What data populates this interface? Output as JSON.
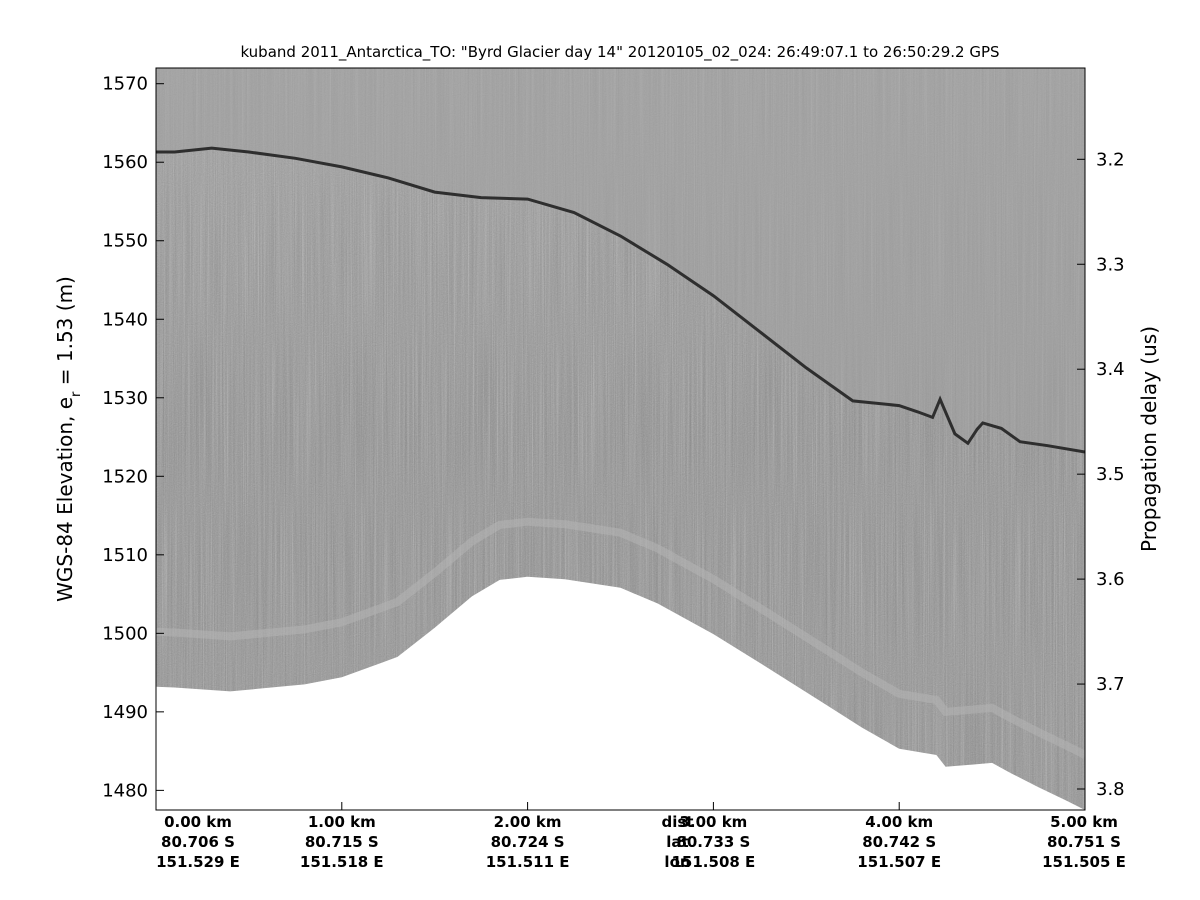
{
  "chart_data": {
    "type": "heatmap",
    "title": "kuband 2011_Antarctica_TO: \"Byrd Glacier day 14\"  20120105_02_024: 26:49:07.1 to 26:50:29.2 GPS",
    "ylabel_left_main": "WGS-84 Elevation, e",
    "ylabel_left_sub": "r",
    "ylabel_left_tail": " = 1.53 (m)",
    "ylabel_right": "Propagation delay (us)",
    "y_left_ticks": [
      1570,
      1560,
      1550,
      1540,
      1530,
      1520,
      1510,
      1500,
      1490,
      1480
    ],
    "y_right_ticks": [
      "3.2",
      "3.3",
      "3.4",
      "3.5",
      "3.6",
      "3.7",
      "3.8"
    ],
    "y_right_values": [
      3.2,
      3.3,
      3.4,
      3.5,
      3.6,
      3.7,
      3.8
    ],
    "ylim": [
      1477.5,
      1572
    ],
    "y_right_lim": [
      3.113,
      3.82
    ],
    "xlim_km": [
      0,
      5
    ],
    "x_ticks": [
      {
        "km": 0,
        "dist": "0.00 km",
        "lat": "80.706 S",
        "lon": "151.529 E"
      },
      {
        "km": 1,
        "dist": "1.00 km",
        "lat": "80.715 S",
        "lon": "151.518 E"
      },
      {
        "km": 2,
        "dist": "2.00 km",
        "lat": "80.724 S",
        "lon": "151.511 E"
      },
      {
        "km": 3,
        "dist": "3.00 km",
        "lat": "80.733 S",
        "lon": "151.508 E"
      },
      {
        "km": 4,
        "dist": "4.00 km",
        "lat": "80.742 S",
        "lon": "151.507 E"
      },
      {
        "km": 5,
        "dist": "5.00 km",
        "lat": "80.751 S",
        "lon": "151.505 E"
      }
    ],
    "row_legend": {
      "km": 2.5,
      "dist": "dist",
      "lat": "lat",
      "lon": "lon"
    },
    "surface_elevation": {
      "x_km": [
        0,
        0.1,
        0.3,
        0.5,
        0.75,
        1.0,
        1.25,
        1.5,
        1.75,
        2.0,
        2.25,
        2.5,
        2.75,
        3.0,
        3.25,
        3.5,
        3.75,
        4.0,
        4.1,
        4.18,
        4.22,
        4.3,
        4.37,
        4.42,
        4.45,
        4.55,
        4.65,
        4.8,
        5.0
      ],
      "y_m": [
        1561.3,
        1561.3,
        1561.8,
        1561.3,
        1560.5,
        1559.4,
        1558.0,
        1556.2,
        1555.5,
        1555.3,
        1553.6,
        1550.6,
        1547.0,
        1543.0,
        1538.4,
        1533.8,
        1529.6,
        1529.0,
        1528.2,
        1527.5,
        1529.8,
        1525.4,
        1524.2,
        1526.0,
        1526.8,
        1526.1,
        1524.4,
        1523.9,
        1523.1
      ]
    },
    "data_bottom_elevation": {
      "x_km": [
        0,
        0.1,
        0.4,
        0.8,
        1.0,
        1.3,
        1.5,
        1.7,
        1.85,
        2.0,
        2.2,
        2.5,
        2.7,
        3.0,
        3.3,
        3.6,
        3.8,
        4.0,
        4.2,
        4.25,
        4.4,
        4.5,
        4.6,
        4.75,
        4.9,
        5.0
      ],
      "y_m": [
        1493.2,
        1493.1,
        1492.6,
        1493.5,
        1494.4,
        1497.0,
        1500.7,
        1504.7,
        1506.8,
        1507.2,
        1506.9,
        1505.8,
        1503.8,
        1499.9,
        1495.5,
        1491.0,
        1488.0,
        1485.3,
        1484.5,
        1483.0,
        1483.3,
        1483.5,
        1482.2,
        1480.4,
        1478.7,
        1477.5
      ]
    },
    "colormap": "gray",
    "colors": {
      "plot_bg": "#8e8e8e",
      "surface_line": "#2e2e2e",
      "no_data": "#ffffff"
    }
  }
}
